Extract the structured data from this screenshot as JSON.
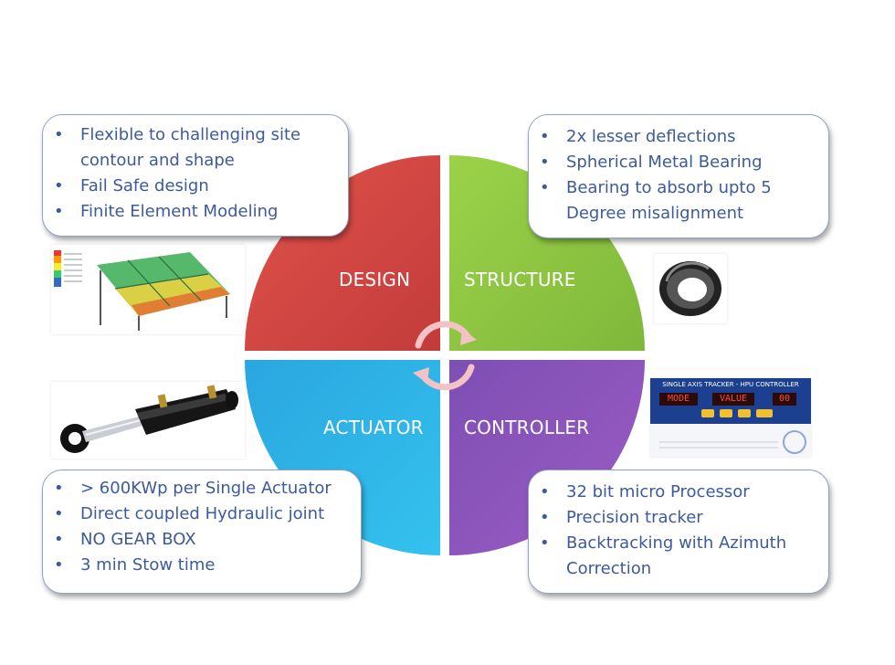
{
  "quadrants": {
    "design": "DESIGN",
    "structure": "STRUCTURE",
    "actuator": "ACTUATOR",
    "controller": "CONTROLLER"
  },
  "design_box": {
    "items": [
      "Flexible to challenging site contour and shape",
      "Fail Safe design",
      "Finite Element Modeling"
    ]
  },
  "structure_box": {
    "items": [
      "2x lesser deflections",
      "Spherical Metal Bearing",
      "Bearing to absorb upto 5 Degree  misalignment"
    ]
  },
  "actuator_box": {
    "items": [
      "> 600KWp per Single Actuator",
      "Direct coupled Hydraulic joint",
      "NO GEAR BOX",
      "3 min Stow time"
    ]
  },
  "controller_box": {
    "items": [
      "32 bit micro Processor",
      "Precision tracker",
      "Backtracking with Azimuth Correction"
    ]
  },
  "controller_panel": {
    "title": "SINGLE AXIS TRACKER - HPU CONTROLLER",
    "mode": "MODE",
    "value": "VALUE",
    "error": "00"
  },
  "images": [
    "fea-analysis-image",
    "spherical-bearing-image",
    "hydraulic-actuator-image",
    "hpu-controller-image"
  ],
  "colors": {
    "design": "#d8443d",
    "structure": "#8cc63f",
    "actuator": "#29b6e8",
    "controller": "#8e55b8",
    "text": "#3c5a9c"
  }
}
